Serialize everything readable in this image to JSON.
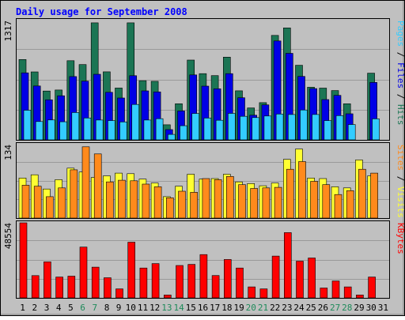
{
  "chart_data": {
    "type": "bar",
    "title": "Daily usage for September 2008",
    "colors": {
      "background": "#c0c0c0",
      "title": "#0000ff",
      "hits": "#1b7554",
      "files": "#0000e6",
      "pages": "#33ccff",
      "visits": "#ffff33",
      "sites": "#ff8a1c",
      "kbytes": "#ff0000",
      "weekday_label": "#000000",
      "weekend_label": "#1e8a5a"
    },
    "categories": [
      "1",
      "2",
      "3",
      "4",
      "5",
      "6",
      "7",
      "8",
      "9",
      "10",
      "11",
      "12",
      "13",
      "14",
      "15",
      "16",
      "17",
      "18",
      "19",
      "20",
      "21",
      "22",
      "23",
      "24",
      "25",
      "26",
      "27",
      "28",
      "29",
      "30",
      "31"
    ],
    "weekend_days": [
      "6",
      "7",
      "13",
      "14",
      "20",
      "21",
      "27",
      "28"
    ],
    "panels": [
      {
        "id": "hits-files-pages",
        "ymax": 1317,
        "ymax_label": "1317",
        "right_label": [
          {
            "text": "Pages",
            "color_key": "pages"
          },
          {
            "text": " / ",
            "color_key": "weekday_label"
          },
          {
            "text": "Files",
            "color_key": "files"
          },
          {
            "text": " / ",
            "color_key": "weekday_label"
          },
          {
            "text": "Hits",
            "color_key": "hits"
          }
        ],
        "series": [
          {
            "name": "Hits",
            "color_key": "hits",
            "values": [
              887,
              750,
              539,
              550,
              874,
              831,
              1292,
              751,
              572,
              1292,
              653,
              646,
              167,
              399,
              881,
              731,
              709,
              913,
              542,
              352,
              411,
              1153,
              1236,
              823,
              581,
              571,
              544,
              399,
              0,
              736,
              0
            ]
          },
          {
            "name": "Files",
            "color_key": "files",
            "values": [
              740,
              595,
              442,
              487,
              699,
              648,
              724,
              525,
              462,
              708,
              541,
              529,
              113,
              319,
              717,
              593,
              563,
              731,
              465,
              272,
              386,
              1092,
              955,
              700,
              566,
              445,
              491,
              288,
              0,
              634,
              0
            ]
          },
          {
            "name": "Pages",
            "color_key": "pages",
            "values": [
              327,
              202,
              220,
              200,
              302,
              242,
              219,
              213,
              198,
              391,
              219,
              234,
              60,
              156,
              291,
              241,
              216,
              292,
              260,
              246,
              263,
              285,
              280,
              330,
              280,
              213,
              268,
              169,
              0,
              232,
              0
            ]
          }
        ]
      },
      {
        "id": "visits-sites",
        "ymax": 134,
        "ymax_label": "134",
        "right_label": [
          {
            "text": "Sites",
            "color_key": "sites"
          },
          {
            "text": " / ",
            "color_key": "weekday_label"
          },
          {
            "text": "Visits",
            "color_key": "visits"
          }
        ],
        "series": [
          {
            "name": "Visits",
            "color_key": "visits",
            "values": [
              73,
              79,
              53,
              70,
              91,
              84,
              74,
              77,
              82,
              81,
              71,
              64,
              39,
              58,
              80,
              71,
              72,
              80,
              66,
              63,
              59,
              64,
              107,
              126,
              73,
              72,
              57,
              55,
              106,
              77,
              0
            ]
          },
          {
            "name": "Sites",
            "color_key": "sites",
            "values": [
              60,
              58,
              39,
              55,
              88,
              130,
              117,
              66,
              69,
              68,
              62,
              57,
              37,
              49,
              47,
              72,
              70,
              76,
              61,
              54,
              55,
              56,
              89,
              103,
              67,
              61,
              43,
              50,
              89,
              82,
              0
            ]
          }
        ]
      },
      {
        "id": "kbytes",
        "ymax": 48554,
        "ymax_label": "48554",
        "right_label": [
          {
            "text": "KBytes",
            "color_key": "kbytes"
          }
        ],
        "series": [
          {
            "name": "KBytes",
            "color_key": "kbytes",
            "values": [
              48554,
              14398,
              23316,
              13509,
              14064,
              32885,
              19876,
              13010,
              5812,
              36045,
              19295,
              22201,
              1887,
              20968,
              21687,
              28004,
              14474,
              24817,
              19295,
              7099,
              5812,
              27059,
              42209,
              23770,
              25812,
              6365,
              10928,
              7099,
              1887,
              13509,
              0
            ]
          }
        ]
      }
    ]
  }
}
